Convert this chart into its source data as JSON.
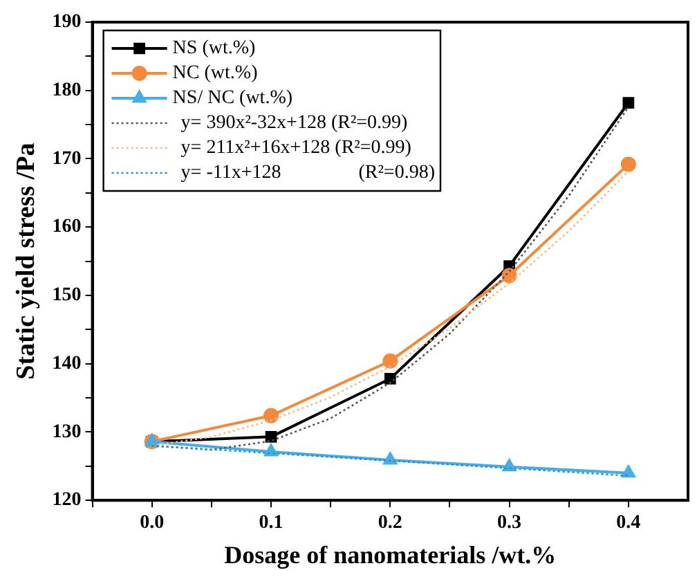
{
  "chart_data": {
    "type": "line",
    "xlabel": "Dosage of nanomaterials /wt.%",
    "ylabel": "Static yield stress /Pa",
    "x": [
      0,
      0.1,
      0.2,
      0.3,
      0.4
    ],
    "xlim": [
      -0.05,
      0.45
    ],
    "xticks": [
      {
        "value": -0.05,
        "label": null
      },
      {
        "value": 0,
        "label": "0.0"
      },
      {
        "value": 0.05,
        "label": null
      },
      0.1,
      {
        "value": 0.15,
        "label": null
      },
      0.2,
      {
        "value": 0.25,
        "label": null
      },
      0.3,
      {
        "value": 0.35,
        "label": null
      },
      0.4
    ],
    "ylim": [
      120,
      190
    ],
    "yticks": [
      120,
      {
        "value": 125,
        "label": null
      },
      130,
      {
        "value": 135,
        "label": null
      },
      140,
      {
        "value": 145,
        "label": null
      },
      150,
      {
        "value": 155,
        "label": null
      },
      160,
      {
        "value": 165,
        "label": null
      },
      170,
      {
        "value": 175,
        "label": null
      },
      180,
      {
        "value": 185,
        "label": null
      },
      190
    ],
    "grid": false,
    "legend": "top left",
    "series": [
      {
        "name": "NS (wt.%)",
        "color": "#000000",
        "marker": "square",
        "values": [
          128.6,
          129.3,
          137.8,
          154.3,
          178.2
        ]
      },
      {
        "name": "NC (wt.%)",
        "color": "#f5893a",
        "marker": "circle",
        "values": [
          128.6,
          132.4,
          140.4,
          152.9,
          169.2
        ]
      },
      {
        "name": "NS/ NC (wt.%)",
        "color": "#45aee8",
        "marker": "triangle",
        "values": [
          128.6,
          127.1,
          125.9,
          124.9,
          124.0
        ]
      },
      {
        "name": "y= 390x²-32x+128 (R²=0.99)",
        "type": "line",
        "color": "#555555",
        "marker": "none",
        "line_style": "dotted",
        "x": [
          0,
          0.05,
          0.1,
          0.15,
          0.2,
          0.25,
          0.3,
          0.35,
          0.4
        ],
        "values": [
          128,
          127.4,
          128.7,
          132,
          137.2,
          144.4,
          153.5,
          164.6,
          177.6
        ]
      },
      {
        "name": "y= 211x²+16x+128 (R²=0.99)",
        "type": "line",
        "color": "#f8b98a",
        "marker": "none",
        "line_style": "dotted",
        "x": [
          0,
          0.05,
          0.1,
          0.15,
          0.2,
          0.25,
          0.3,
          0.35,
          0.4
        ],
        "values": [
          128,
          129.3,
          131.7,
          135.1,
          139.6,
          145.2,
          151.8,
          159.4,
          168.2
        ]
      },
      {
        "name": "y= -11x+128                (R²=0.98)",
        "type": "line",
        "color": "#2b8fc7",
        "marker": "none",
        "line_style": "dotted",
        "x": [
          0,
          0.4
        ],
        "values": [
          128,
          123.6
        ]
      }
    ]
  }
}
